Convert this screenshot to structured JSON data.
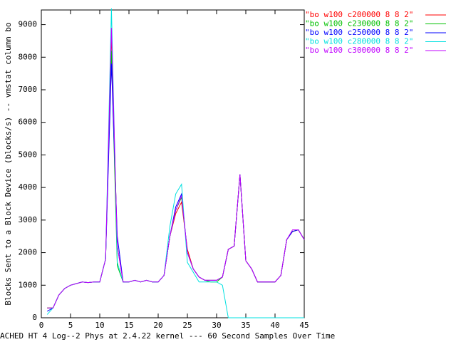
{
  "chart_data": {
    "type": "line",
    "xlabel": "ACHED HT 4 Log--2 Phys at 2.4.22 kernel --- 60 Second Samples Over Time",
    "ylabel": "Blocks Sent to a Block Device (blocks/s) -- vmstat column bo",
    "x": [
      1,
      2,
      3,
      4,
      5,
      6,
      7,
      8,
      9,
      10,
      11,
      12,
      13,
      14,
      15,
      16,
      17,
      18,
      19,
      20,
      21,
      22,
      23,
      24,
      25,
      26,
      27,
      28,
      29,
      30,
      31,
      32,
      33,
      34,
      35,
      36,
      37,
      38,
      39,
      40,
      41,
      42,
      43,
      44,
      45
    ],
    "series": [
      {
        "name": "\"bo w100 c200000 8 8 2\"",
        "color": "#ff0000",
        "values": [
          300,
          300,
          700,
          900,
          1000,
          1050,
          1100,
          1080,
          1100,
          1100,
          1800,
          8700,
          2200,
          1100,
          1100,
          1150,
          1100,
          1150,
          1100,
          1100,
          1300,
          2500,
          3200,
          3550,
          2100,
          1500,
          1250,
          1150,
          1150,
          1150,
          1250,
          2100,
          2200,
          4400,
          1750,
          1500,
          1100,
          1100,
          1100,
          1100,
          1300,
          2400,
          2650,
          2700,
          2400
        ]
      },
      {
        "name": "\"bo w100 c230000 8 8 2\"",
        "color": "#00c000",
        "values": [
          300,
          300,
          700,
          900,
          1000,
          1050,
          1100,
          1080,
          1100,
          1100,
          1800,
          8200,
          1600,
          1100,
          1100,
          1150,
          1100,
          1150,
          1100,
          1100,
          1300,
          2500,
          3300,
          3700,
          2000,
          1500,
          1250,
          1150,
          1100,
          1100,
          1250,
          2100,
          2200,
          4400,
          1750,
          1500,
          1100,
          1100,
          1100,
          1100,
          1300,
          2400,
          2650,
          2700,
          2400
        ]
      },
      {
        "name": "\"bo w100 c250000 8 8 2\"",
        "color": "#0000ff",
        "values": [
          200,
          300,
          700,
          900,
          1000,
          1050,
          1100,
          1080,
          1100,
          1100,
          1800,
          7800,
          2500,
          1100,
          1100,
          1150,
          1100,
          1150,
          1100,
          1100,
          1300,
          2500,
          3400,
          3800,
          2000,
          1500,
          1250,
          1150,
          1150,
          1150,
          1250,
          2100,
          2200,
          4400,
          1750,
          1500,
          1100,
          1100,
          1100,
          1100,
          1300,
          2400,
          2650,
          2700,
          2400
        ]
      },
      {
        "name": "\"bo w100 c280000 8 8 2\"",
        "color": "#00e0e0",
        "values": [
          100,
          300,
          700,
          900,
          1000,
          1050,
          1100,
          1080,
          1100,
          1100,
          1800,
          9500,
          1700,
          1100,
          1100,
          1150,
          1100,
          1150,
          1100,
          1100,
          1300,
          2800,
          3800,
          4100,
          1700,
          1400,
          1100,
          1100,
          1100,
          1100,
          1000,
          0,
          0,
          0,
          0,
          0,
          0,
          0,
          0,
          0,
          0,
          0,
          0,
          0,
          0
        ]
      },
      {
        "name": "\"bo w100 c300000 8 8 2\"",
        "color": "#c000ff",
        "values": [
          300,
          300,
          700,
          900,
          1000,
          1050,
          1100,
          1080,
          1100,
          1100,
          1800,
          8900,
          2200,
          1100,
          1100,
          1150,
          1100,
          1150,
          1100,
          1100,
          1300,
          2500,
          3300,
          3750,
          2000,
          1500,
          1250,
          1150,
          1150,
          1150,
          1250,
          2100,
          2200,
          4400,
          1750,
          1500,
          1100,
          1100,
          1100,
          1100,
          1300,
          2400,
          2700,
          2700,
          2400
        ]
      }
    ],
    "xlim": [
      0,
      45
    ],
    "xticks": [
      0,
      5,
      10,
      15,
      20,
      25,
      30,
      35,
      40,
      45
    ],
    "ylim": [
      0,
      9450
    ],
    "yticks": [
      0,
      1000,
      2000,
      3000,
      4000,
      5000,
      6000,
      7000,
      8000,
      9000
    ]
  }
}
